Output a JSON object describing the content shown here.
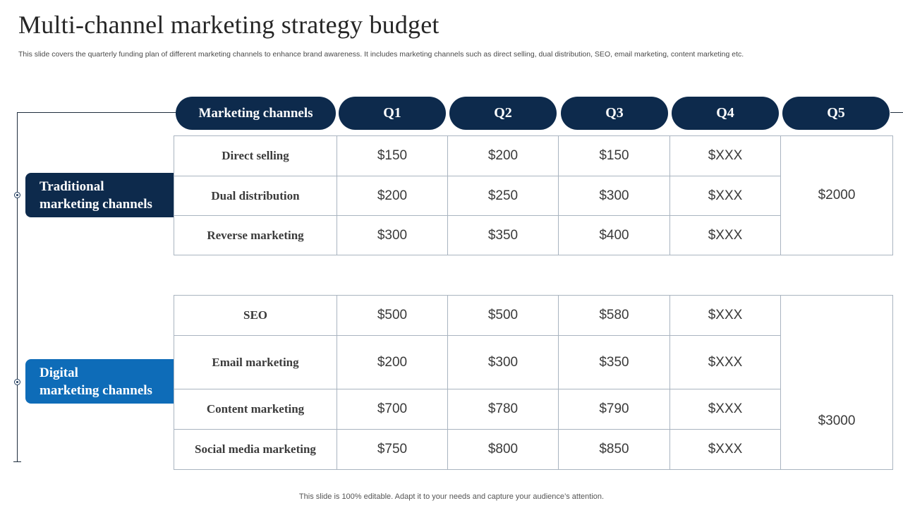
{
  "title": "Multi-channel marketing strategy budget",
  "subtitle": "This slide covers the quarterly funding plan of different marketing channels to enhance brand awareness. It includes marketing channels such as direct selling, dual distribution, SEO, email marketing, content marketing etc.",
  "footer": "This slide is 100% editable. Adapt it to your needs and capture your audience’s attention.",
  "colors": {
    "navy": "#0d2a4c",
    "blue": "#0e6cb8",
    "border": "#a9b4c0"
  },
  "header": {
    "channel": "Marketing  channels",
    "q1": "Q1",
    "q2": "Q2",
    "q3": "Q3",
    "q4": "Q4",
    "q5": "Q5"
  },
  "groups": {
    "traditional": {
      "label_line1": "Traditional",
      "label_line2": "marketing  channels",
      "total": "$2000",
      "rows": [
        {
          "channel": "Direct selling",
          "q1": "$150",
          "q2": "$200",
          "q3": "$150",
          "q4": "$XXX"
        },
        {
          "channel": "Dual distribution",
          "q1": "$200",
          "q2": "$250",
          "q3": "$300",
          "q4": "$XXX"
        },
        {
          "channel": "Reverse marketing",
          "q1": "$300",
          "q2": "$350",
          "q3": "$400",
          "q4": "$XXX"
        }
      ]
    },
    "digital": {
      "label_line1": "Digital",
      "label_line2": "marketing  channels",
      "total": "$3000",
      "rows": [
        {
          "channel": "SEO",
          "q1": "$500",
          "q2": "$500",
          "q3": "$580",
          "q4": "$XXX"
        },
        {
          "channel": "Email marketing",
          "q1": "$200",
          "q2": "$300",
          "q3": "$350",
          "q4": "$XXX"
        },
        {
          "channel": "Content marketing",
          "q1": "$700",
          "q2": "$780",
          "q3": "$790",
          "q4": "$XXX"
        },
        {
          "channel": "Social media marketing",
          "q1": "$750",
          "q2": "$800",
          "q3": "$850",
          "q4": "$XXX"
        }
      ]
    }
  }
}
